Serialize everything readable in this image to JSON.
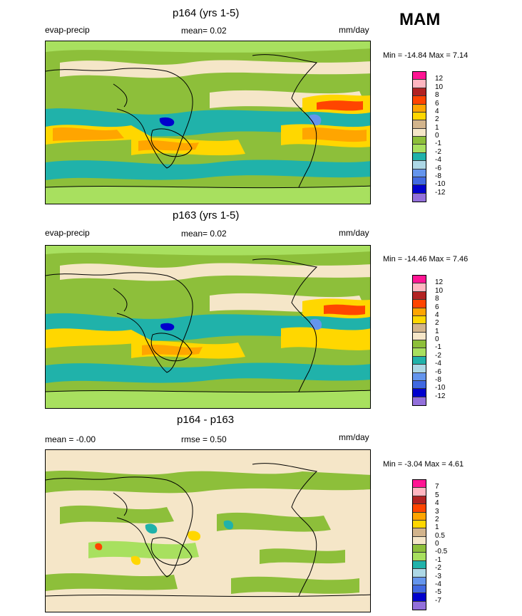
{
  "season": "MAM",
  "panels": [
    {
      "title": "p164 (yrs 1-5)",
      "left_label": "evap-precip",
      "center_label": "mean=   0.02",
      "units": "mm/day",
      "stats": "Min = -14.84 Max =   7.14",
      "colorbar": {
        "labels": [
          "12",
          "10",
          "8",
          "6",
          "4",
          "2",
          "1",
          "0",
          "-1",
          "-2",
          "-4",
          "-6",
          "-8",
          "-10",
          "-12"
        ],
        "colors": [
          "#ff1493",
          "#ffb6c1",
          "#b22222",
          "#ff4500",
          "#ffa500",
          "#ffd700",
          "#d2b48c",
          "#f5e6c8",
          "#8dbf3a",
          "#a8e05f",
          "#20b2aa",
          "#add8e6",
          "#6495ed",
          "#4169e1",
          "#0000cd",
          "#9370db"
        ]
      }
    },
    {
      "title": "p163 (yrs 1-5)",
      "left_label": "evap-precip",
      "center_label": "mean=   0.02",
      "units": "mm/day",
      "stats": "Min = -14.46 Max =   7.46",
      "colorbar": {
        "labels": [
          "12",
          "10",
          "8",
          "6",
          "4",
          "2",
          "1",
          "0",
          "-1",
          "-2",
          "-4",
          "-6",
          "-8",
          "-10",
          "-12"
        ],
        "colors": [
          "#ff1493",
          "#ffb6c1",
          "#b22222",
          "#ff4500",
          "#ffa500",
          "#ffd700",
          "#d2b48c",
          "#f5e6c8",
          "#8dbf3a",
          "#a8e05f",
          "#20b2aa",
          "#add8e6",
          "#6495ed",
          "#4169e1",
          "#0000cd",
          "#9370db"
        ]
      }
    },
    {
      "title": "p164 - p163",
      "left_label": "mean =  -0.00",
      "center_label": "rmse =   0.50",
      "units": "mm/day",
      "stats": "Min =  -3.04 Max =   4.61",
      "colorbar": {
        "labels": [
          "7",
          "5",
          "4",
          "3",
          "2",
          "1",
          "0.5",
          "0",
          "-0.5",
          "-1",
          "-2",
          "-3",
          "-4",
          "-5",
          "-7"
        ],
        "colors": [
          "#ff1493",
          "#ffb6c1",
          "#b22222",
          "#ff4500",
          "#ffa500",
          "#ffd700",
          "#d2b48c",
          "#f5e6c8",
          "#8dbf3a",
          "#a8e05f",
          "#20b2aa",
          "#add8e6",
          "#6495ed",
          "#4169e1",
          "#0000cd",
          "#9370db"
        ]
      }
    }
  ],
  "chart_data": {
    "type": "heatmap",
    "title": "MAM",
    "variable": "evap-precip",
    "units": "mm/day",
    "maps": [
      {
        "title": "p164 (yrs 1-5)",
        "mean": 0.02,
        "min": -14.84,
        "max": 7.14
      },
      {
        "title": "p163 (yrs 1-5)",
        "mean": 0.02,
        "min": -14.46,
        "max": 7.46
      },
      {
        "title": "p164 - p163",
        "mean": -0.0,
        "rmse": 0.5,
        "min": -3.04,
        "max": 4.61
      }
    ]
  }
}
